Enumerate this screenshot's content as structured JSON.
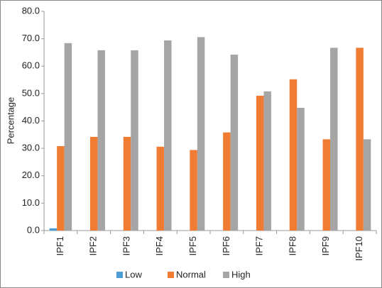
{
  "chart_data": {
    "type": "bar",
    "y_label": "Percentage",
    "categories": [
      "IPF1",
      "IPF2",
      "IPF3",
      "IPF4",
      "IPF5",
      "IPF6",
      "IPF7",
      "IPF8",
      "IPF9",
      "IPF10"
    ],
    "series": [
      {
        "name": "Low",
        "color": "#4a9bd6",
        "values": [
          0.8,
          0,
          0,
          0,
          0,
          0,
          0,
          0,
          0,
          0
        ]
      },
      {
        "name": "Normal",
        "color": "#f07c33",
        "values": [
          30.8,
          34.2,
          34.2,
          30.6,
          29.4,
          35.8,
          49.2,
          55.2,
          33.3,
          66.7
        ]
      },
      {
        "name": "High",
        "color": "#a5a5a5",
        "values": [
          68.4,
          65.8,
          65.8,
          69.4,
          70.6,
          64.2,
          50.8,
          44.8,
          66.7,
          33.3
        ]
      }
    ],
    "ylim": [
      0,
      80
    ],
    "yticks": [
      {
        "value": 0,
        "label": "0.0"
      },
      {
        "value": 10,
        "label": "10.0"
      },
      {
        "value": 20,
        "label": "20.0"
      },
      {
        "value": 30,
        "label": "30.0"
      },
      {
        "value": 40,
        "label": "40.0"
      },
      {
        "value": 50,
        "label": "50.0"
      },
      {
        "value": 60,
        "label": "60.0"
      },
      {
        "value": 70,
        "label": "70.0"
      },
      {
        "value": 80,
        "label": "80.0"
      }
    ],
    "grid": false,
    "legend": "bottom"
  }
}
